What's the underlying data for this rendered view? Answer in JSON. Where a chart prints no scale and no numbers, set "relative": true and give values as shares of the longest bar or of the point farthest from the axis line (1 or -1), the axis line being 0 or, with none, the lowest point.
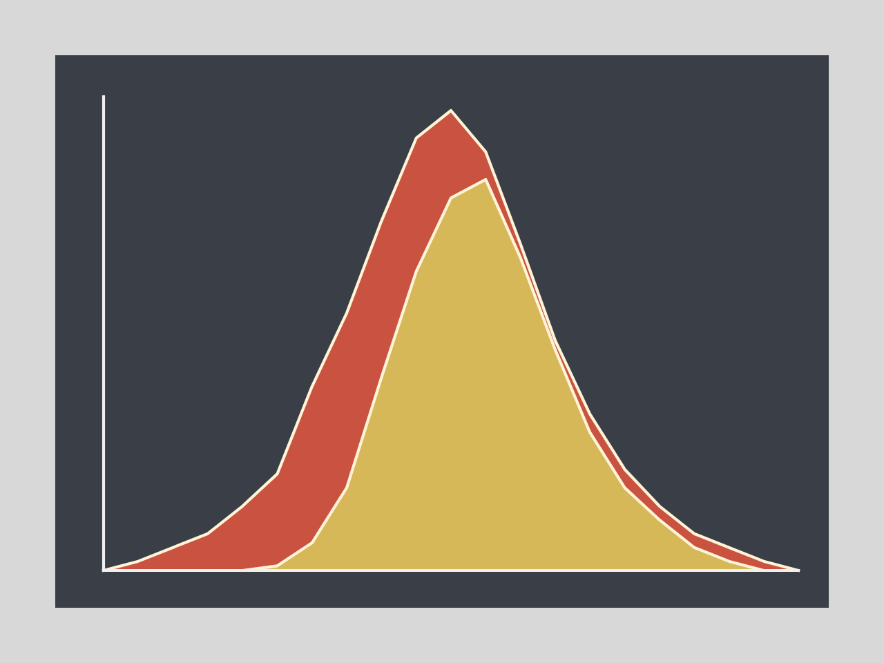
{
  "chart_data": {
    "type": "area",
    "relative": true,
    "categories": [
      null,
      null,
      null,
      null,
      null,
      null,
      null,
      null,
      null,
      null,
      null,
      null,
      null,
      null,
      null,
      null,
      null,
      null,
      null,
      null,
      null
    ],
    "series": [
      {
        "color": "#d9553f",
        "values": [
          0,
          0.02,
          0.05,
          0.08,
          0.14,
          0.21,
          0.4,
          0.56,
          0.76,
          0.94,
          1,
          0.91,
          0.71,
          0.5,
          0.34,
          0.22,
          0.14,
          0.08,
          0.05,
          0.02,
          0
        ]
      },
      {
        "color": "#d8c35c",
        "values": [
          0,
          0,
          0,
          0,
          0,
          0.01,
          0.06,
          0.18,
          0.42,
          0.65,
          0.81,
          0.85,
          0.68,
          0.48,
          0.3,
          0.18,
          0.11,
          0.05,
          0.02,
          0,
          0
        ]
      }
    ]
  }
}
